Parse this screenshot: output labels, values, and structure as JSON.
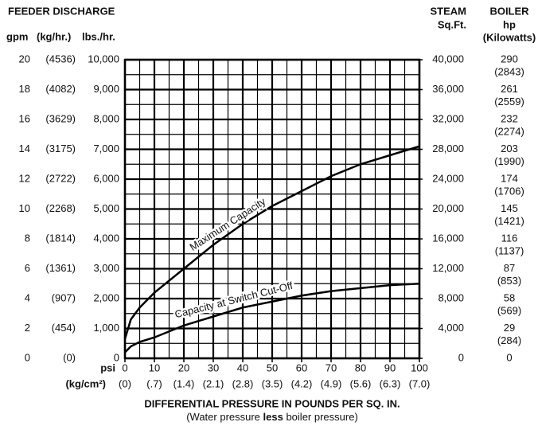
{
  "chart_data": {
    "type": "line",
    "title": "FEEDER DISCHARGE",
    "xlabel": "DIFFERENTIAL PRESSURE IN POUNDS PER SQ. IN.",
    "xnote": [
      "(Water pressure ",
      "less",
      " boiler pressure)"
    ],
    "xunit": "psi",
    "x2unit": "(kg/cm²)",
    "xlim": [
      0,
      100
    ],
    "xticks": [
      0,
      10,
      20,
      30,
      40,
      50,
      60,
      70,
      80,
      90,
      100
    ],
    "x2tick_labels": [
      "(0)",
      "(.7)",
      "(1.4)",
      "(2.1)",
      "(2.8)",
      "(3.5)",
      "(4.2)",
      "(4.9)",
      "(5.6)",
      "(6.3)",
      "(7.0)"
    ],
    "ylabel": "lbs./hr.",
    "ylim": [
      0,
      10000
    ],
    "yticks": [
      0,
      {
        "value": 1000,
        "label": "1,000"
      },
      {
        "value": 2000,
        "label": "2,000"
      },
      {
        "value": 3000,
        "label": "3,000"
      },
      {
        "value": 4000,
        "label": "4,000"
      },
      {
        "value": 5000,
        "label": "5,000"
      },
      {
        "value": 6000,
        "label": "6,000"
      },
      {
        "value": 7000,
        "label": "7,000"
      },
      {
        "value": 8000,
        "label": "8,000"
      },
      {
        "value": 9000,
        "label": "9,000"
      },
      {
        "value": 10000,
        "label": "10,000"
      }
    ],
    "gpm_label": "gpm",
    "gpm_ticks": [
      0,
      2,
      4,
      6,
      8,
      10,
      12,
      14,
      16,
      18,
      20
    ],
    "kghr_label": "(kg/hr.)",
    "kghr_ticks": [
      "(0)",
      "(454)",
      "(907)",
      "(1361)",
      "(1814)",
      "(2268)",
      "(2722)",
      "(3175)",
      "(3629)",
      "(4082)",
      "(4536)"
    ],
    "y2label": [
      "STEAM",
      "Sq.Ft."
    ],
    "y2lim": [
      0,
      40000
    ],
    "y2ticks": [
      0,
      {
        "value": 4000,
        "label": "4,000"
      },
      {
        "value": 8000,
        "label": "8,000"
      },
      {
        "value": 12000,
        "label": "12,000"
      },
      {
        "value": 16000,
        "label": "16,000"
      },
      {
        "value": 20000,
        "label": "20,000"
      },
      {
        "value": 24000,
        "label": "24,000"
      },
      {
        "value": 28000,
        "label": "28,000"
      },
      {
        "value": 32000,
        "label": "32,000"
      },
      {
        "value": 36000,
        "label": "36,000"
      },
      {
        "value": 40000,
        "label": "40,000"
      }
    ],
    "boiler_label": [
      "BOILER",
      "hp",
      "(Kilowatts)"
    ],
    "boiler_hp": [
      0,
      29,
      58,
      87,
      116,
      145,
      174,
      203,
      232,
      261,
      290
    ],
    "boiler_kw": [
      null,
      "(284)",
      "(569)",
      "(853)",
      "(1137)",
      "(1421)",
      "(1706)",
      "(1990)",
      "(2274)",
      "(2559)",
      "(2843)"
    ],
    "grid": true,
    "x": [
      0,
      2,
      5,
      10,
      20,
      30,
      40,
      50,
      60,
      70,
      80,
      90,
      100
    ],
    "series": [
      {
        "name": "Maximum Capacity",
        "color": "#000000",
        "values": [
          650,
          1300,
          1700,
          2200,
          3000,
          3800,
          4500,
          5100,
          5600,
          6100,
          6500,
          6800,
          7100
        ]
      },
      {
        "name": "Capacity at Switch Cut-Off",
        "color": "#000000",
        "values": [
          200,
          400,
          550,
          700,
          1100,
          1400,
          1700,
          1900,
          2100,
          2250,
          2350,
          2450,
          2500
        ]
      }
    ]
  }
}
